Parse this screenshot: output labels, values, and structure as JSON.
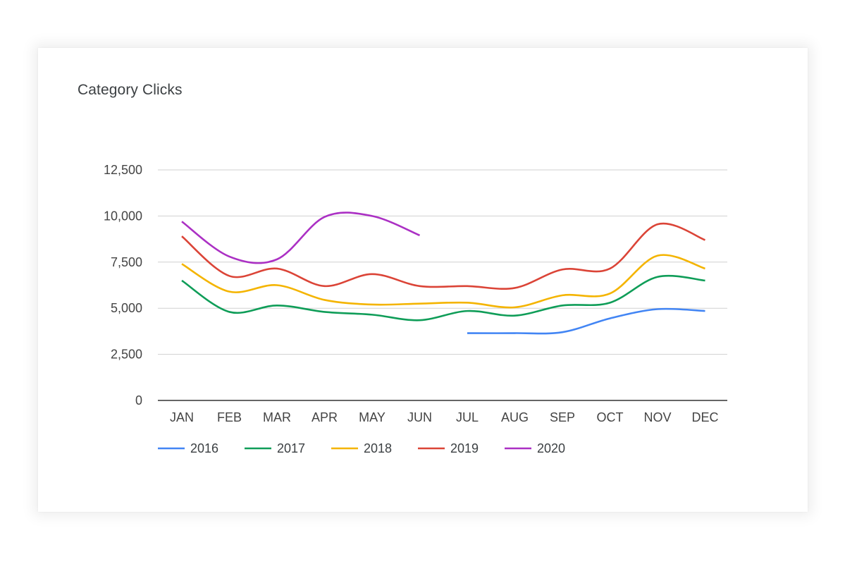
{
  "chart_data": {
    "type": "line",
    "title": "Category Clicks",
    "xlabel": "",
    "ylabel": "",
    "ylim": [
      0,
      12500
    ],
    "yticks": [
      0,
      2500,
      5000,
      7500,
      10000,
      12500
    ],
    "ytick_labels": [
      "0",
      "2,500",
      "5,000",
      "7,500",
      "10,000",
      "12,500"
    ],
    "categories": [
      "JAN",
      "FEB",
      "MAR",
      "APR",
      "MAY",
      "JUN",
      "JUL",
      "AUG",
      "SEP",
      "OCT",
      "NOV",
      "DEC"
    ],
    "grid": true,
    "legend_position": "bottom-left",
    "series": [
      {
        "name": "2016",
        "color": "#4285f4",
        "values": [
          null,
          null,
          null,
          null,
          null,
          null,
          3650,
          3650,
          3700,
          4450,
          4950,
          4850
        ]
      },
      {
        "name": "2017",
        "color": "#0f9d58",
        "values": [
          6500,
          4800,
          5150,
          4800,
          4650,
          4350,
          4850,
          4600,
          5150,
          5300,
          6700,
          6500
        ]
      },
      {
        "name": "2018",
        "color": "#f4b400",
        "values": [
          7400,
          5900,
          6250,
          5450,
          5200,
          5250,
          5300,
          5050,
          5700,
          5800,
          7850,
          7150
        ]
      },
      {
        "name": "2019",
        "color": "#db4437",
        "values": [
          8900,
          6750,
          7150,
          6200,
          6850,
          6200,
          6200,
          6100,
          7100,
          7150,
          9550,
          8700
        ]
      },
      {
        "name": "2020",
        "color": "#ab30c4",
        "values": [
          9700,
          7800,
          7650,
          9950,
          10000,
          8950,
          null,
          null,
          null,
          null,
          null,
          null
        ]
      }
    ]
  }
}
